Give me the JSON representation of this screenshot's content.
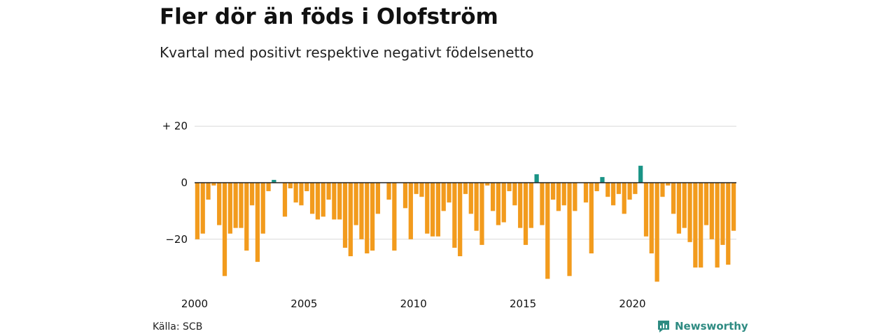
{
  "header": {
    "title": "Fler dör än föds i Olofström",
    "subtitle": "Kvartal med positivt respektive negativt födelsenetto"
  },
  "footer": {
    "source": "Källa: SCB",
    "brand": "Newsworthy"
  },
  "colors": {
    "negative": "#f29b1d",
    "positive": "#1a9486",
    "grid": "#d9d9d9",
    "zero_line": "#222222"
  },
  "chart_data": {
    "type": "bar",
    "title": "Fler dör än föds i Olofström",
    "subtitle": "Kvartal med positivt respektive negativt födelsenetto",
    "xlabel": "",
    "ylabel": "",
    "ylim": [
      -36,
      22
    ],
    "y_ticks": [
      {
        "value": 20,
        "label": "+ 20"
      },
      {
        "value": 0,
        "label": "0"
      },
      {
        "value": -20,
        "label": "−20"
      }
    ],
    "x_ticks": [
      "2000",
      "2005",
      "2010",
      "2015",
      "2020"
    ],
    "x_start_year": 2000,
    "periods_per_year": 4,
    "grid": true,
    "values": [
      -20,
      -18,
      -6,
      -1,
      -15,
      -33,
      -18,
      -16,
      -16,
      -24,
      -8,
      -28,
      -18,
      -3,
      1,
      0,
      -12,
      -2,
      -7,
      -8,
      -3,
      -11,
      -13,
      -12,
      -6,
      -13,
      -13,
      -23,
      -26,
      -15,
      -20,
      -25,
      -24,
      -11,
      0,
      -6,
      -24,
      0,
      -9,
      -20,
      -4,
      -5,
      -18,
      -19,
      -19,
      -10,
      -7,
      -23,
      -26,
      -4,
      -11,
      -17,
      -22,
      -1,
      -10,
      -15,
      -14,
      -3,
      -8,
      -16,
      -22,
      -16,
      3,
      -15,
      -34,
      -6,
      -10,
      -8,
      -33,
      -10,
      0,
      -7,
      -25,
      -3,
      2,
      -5,
      -8,
      -4,
      -11,
      -6,
      -4,
      6,
      -19,
      -25,
      -35,
      -5,
      -1,
      -11,
      -18,
      -16,
      -21,
      -30,
      -30,
      -15,
      -20,
      -30,
      -22,
      -29,
      -17
    ]
  }
}
